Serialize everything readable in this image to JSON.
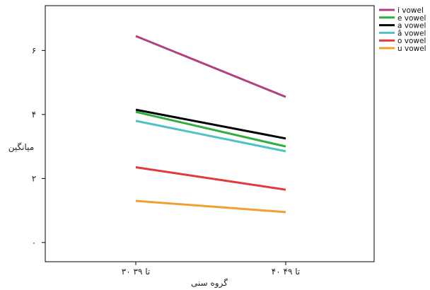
{
  "chart_data": {
    "type": "line",
    "title": "",
    "xlabel": "گروه سنی",
    "ylabel": "میانگین",
    "categories": [
      "۳۰ تا ۳۹",
      "۴۰ تا ۴۹"
    ],
    "y_ticks": [
      {
        "value": 0,
        "label": "۰"
      },
      {
        "value": 2,
        "label": "۲"
      },
      {
        "value": 4,
        "label": "۴"
      },
      {
        "value": 6,
        "label": "۶"
      }
    ],
    "ylim": [
      -0.6,
      7.4
    ],
    "grid": false,
    "legend_position": "top-right, outside plot",
    "series": [
      {
        "name": "i vowel",
        "color": "#b0407f",
        "values": [
          6.45,
          4.55
        ]
      },
      {
        "name": "e vowel",
        "color": "#2fae3c",
        "values": [
          4.08,
          3.0
        ]
      },
      {
        "name": "a vowel",
        "color": "#000000",
        "values": [
          4.15,
          3.25
        ]
      },
      {
        "name": "â vowel",
        "color": "#4fc2c2",
        "values": [
          3.8,
          2.85
        ]
      },
      {
        "name": "o vowel",
        "color": "#e03a3a",
        "values": [
          2.35,
          1.65
        ]
      },
      {
        "name": "u vowel",
        "color": "#f0a030",
        "values": [
          1.3,
          0.95
        ]
      }
    ]
  }
}
